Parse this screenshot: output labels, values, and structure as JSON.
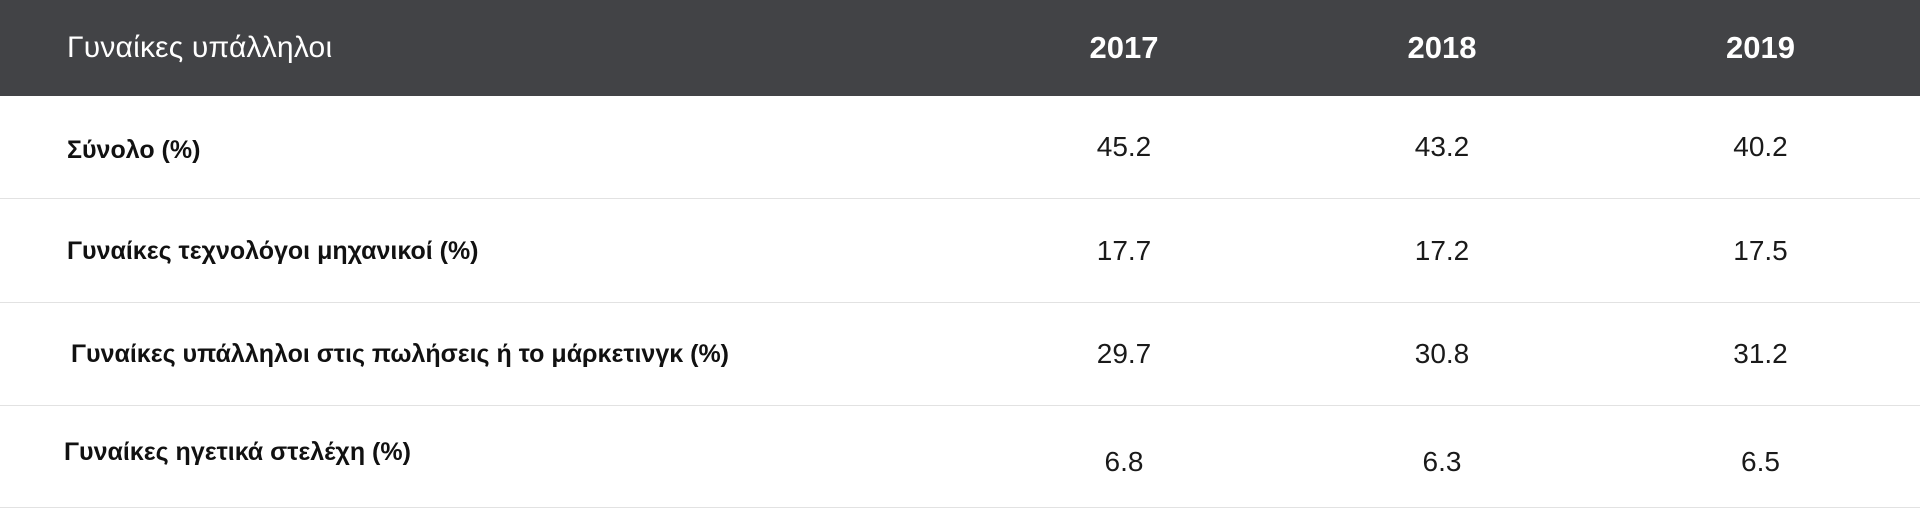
{
  "header": {
    "label": "Γυναίκες υπάλληλοι",
    "years": [
      "2017",
      "2018",
      "2019"
    ]
  },
  "rows": [
    {
      "label": "Σύνολο (%)",
      "values": [
        "45.2",
        "43.2",
        "40.2"
      ]
    },
    {
      "label": "Γυναίκες τεχνολόγοι μηχανικοί (%)",
      "values": [
        "17.7",
        "17.2",
        "17.5"
      ]
    },
    {
      "label": "Γυναίκες υπάλληλοι στις πωλήσεις ή το μάρκετινγκ (%)",
      "values": [
        "29.7",
        "30.8",
        "31.2"
      ]
    },
    {
      "label": "Γυναίκες ηγετικά στελέχη (%)",
      "values": [
        "6.8",
        "6.3",
        "6.5"
      ]
    }
  ],
  "colors": {
    "header_background": "#424346",
    "header_text": "#ffffff",
    "row_divider": "#e2e2e2"
  }
}
